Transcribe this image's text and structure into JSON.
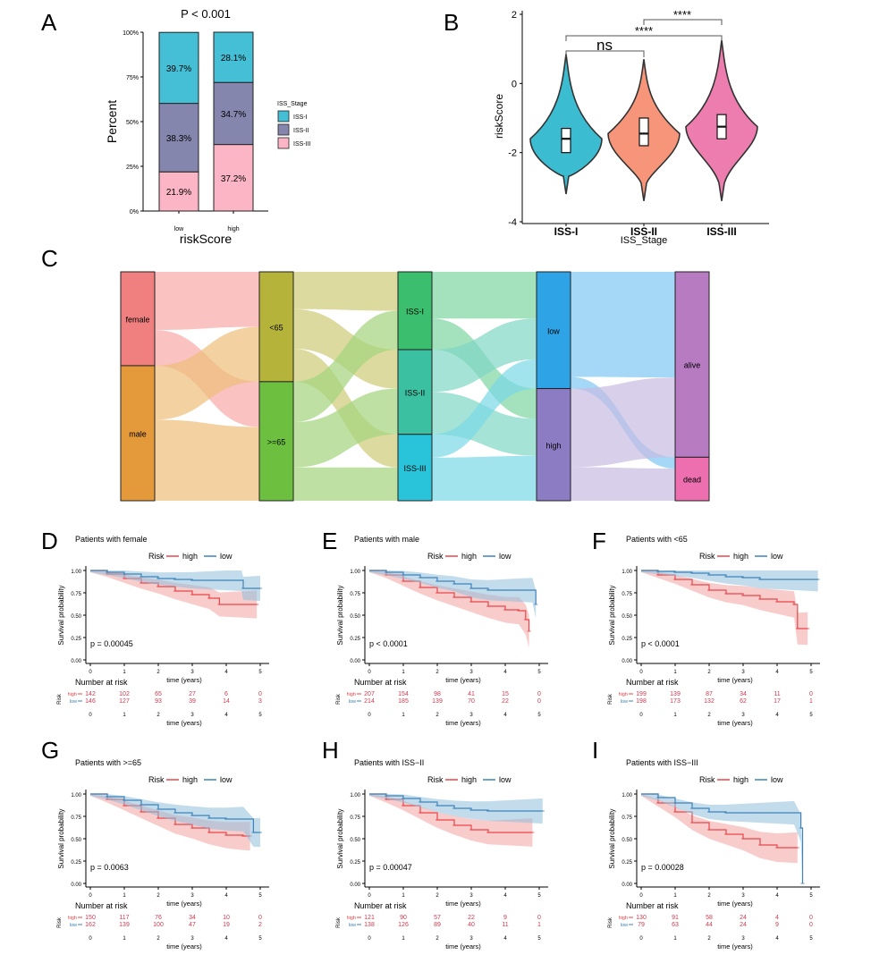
{
  "colors": {
    "iss1": "#44BFD5",
    "iss2": "#8486AD",
    "iss3": "#FBB5C4",
    "vio1": "#3BBCD0",
    "vio2": "#F6957A",
    "vio3": "#EC7DAE",
    "km_high": "#E8454A",
    "km_low": "#3E82B8",
    "km_high_band": "#F4A3A3",
    "km_low_band": "#8FC0DD"
  },
  "panels": {
    "A": "A",
    "B": "B",
    "C": "C",
    "D": "D",
    "E": "E",
    "F": "F",
    "G": "G",
    "H": "H",
    "I": "I"
  },
  "chart_data": [
    {
      "panel": "A",
      "type": "bar",
      "stacked": true,
      "title": "P < 0.001",
      "xlabel": "riskScore",
      "ylabel": "Percent",
      "categories": [
        "low",
        "high"
      ],
      "yticks": [
        "0%",
        "25%",
        "50%",
        "75%",
        "100%"
      ],
      "legend_title": "ISS_Stage",
      "series": [
        {
          "name": "ISS-III",
          "values": [
            21.9,
            37.2
          ],
          "labels": [
            "21.9%",
            "37.2%"
          ]
        },
        {
          "name": "ISS-II",
          "values": [
            38.3,
            34.7
          ],
          "labels": [
            "38.3%",
            "34.7%"
          ]
        },
        {
          "name": "ISS-I",
          "values": [
            39.7,
            28.1
          ],
          "labels": [
            "39.7%",
            "28.1%"
          ]
        }
      ],
      "legend": [
        "ISS-I",
        "ISS-II",
        "ISS-III"
      ]
    },
    {
      "panel": "B",
      "type": "violin",
      "xlabel": "ISS_Stage",
      "ylabel": "riskScore",
      "ylim": [
        -4,
        2
      ],
      "yticks": [
        "-4",
        "-2",
        "0",
        "2"
      ],
      "categories": [
        "ISS-I",
        "ISS-II",
        "ISS-III"
      ],
      "medians": [
        -1.6,
        -1.45,
        -1.25
      ],
      "boxes": [
        {
          "q1": -2.0,
          "q3": -1.3
        },
        {
          "q1": -1.8,
          "q3": -1.0
        },
        {
          "q1": -1.6,
          "q3": -0.9
        }
      ],
      "ranges": [
        {
          "min": -3.2,
          "max": 0.85
        },
        {
          "min": -3.4,
          "max": 0.7
        },
        {
          "min": -3.4,
          "max": 1.25
        }
      ],
      "significance": [
        {
          "label": "ns",
          "pair": "ISS-I vs ISS-II"
        },
        {
          "label": "****",
          "pair": "ISS-I vs ISS-III"
        },
        {
          "label": "****",
          "pair": "ISS-II vs ISS-III"
        }
      ]
    },
    {
      "panel": "C",
      "type": "sankey",
      "nodes": [
        {
          "axis": 0,
          "label": "female",
          "share": 0.41
        },
        {
          "axis": 0,
          "label": "male",
          "share": 0.59
        },
        {
          "axis": 1,
          "label": "<65",
          "share": 0.48
        },
        {
          "axis": 1,
          "label": ">=65",
          "share": 0.52
        },
        {
          "axis": 2,
          "label": "ISS-I",
          "share": 0.34
        },
        {
          "axis": 2,
          "label": "ISS-II",
          "share": 0.37
        },
        {
          "axis": 2,
          "label": "ISS-III",
          "share": 0.29
        },
        {
          "axis": 3,
          "label": "low",
          "share": 0.51
        },
        {
          "axis": 3,
          "label": "high",
          "share": 0.49
        },
        {
          "axis": 4,
          "label": "alive",
          "share": 0.81
        },
        {
          "axis": 4,
          "label": "dead",
          "share": 0.19
        }
      ]
    },
    {
      "panel": "D",
      "type": "line",
      "subtitle": "Patients with female",
      "pvalue": "p = 0.00045",
      "xlabel": "time (years)",
      "ylabel": "Survival probability",
      "ylim": [
        0,
        1
      ],
      "xlim": [
        0,
        5
      ],
      "legend_label": "Risk",
      "series": [
        {
          "name": "high",
          "x": [
            0,
            0.5,
            1,
            1.5,
            2,
            2.5,
            3,
            3.5,
            3.8,
            4,
            4.5,
            4.9
          ],
          "y": [
            1,
            0.96,
            0.91,
            0.86,
            0.82,
            0.77,
            0.73,
            0.69,
            0.62,
            0.62,
            0.62,
            0.62
          ]
        },
        {
          "name": "low",
          "x": [
            0,
            0.5,
            1,
            1.5,
            2,
            2.5,
            3,
            3.5,
            4,
            4.45,
            4.5,
            5
          ],
          "y": [
            1,
            0.98,
            0.96,
            0.93,
            0.91,
            0.9,
            0.89,
            0.89,
            0.89,
            0.89,
            0.8,
            0.8
          ]
        }
      ],
      "risk_table": {
        "title": "Number at risk",
        "rows": [
          {
            "name": "high",
            "counts": [
              "142",
              "102",
              "65",
              "27",
              "6",
              "0"
            ]
          },
          {
            "name": "low",
            "counts": [
              "146",
              "127",
              "93",
              "39",
              "14",
              "3"
            ]
          }
        ]
      }
    },
    {
      "panel": "E",
      "type": "line",
      "subtitle": "Patients with male",
      "pvalue": "p < 0.0001",
      "xlabel": "time (years)",
      "ylabel": "Survival probability",
      "ylim": [
        0,
        1
      ],
      "xlim": [
        0,
        5
      ],
      "legend_label": "Risk",
      "series": [
        {
          "name": "high",
          "x": [
            0,
            0.5,
            1,
            1.5,
            2,
            2.5,
            3,
            3.5,
            4,
            4.4,
            4.6,
            4.7
          ],
          "y": [
            1,
            0.95,
            0.88,
            0.81,
            0.75,
            0.7,
            0.65,
            0.6,
            0.56,
            0.55,
            0.45,
            0.32
          ]
        },
        {
          "name": "low",
          "x": [
            0,
            0.5,
            1,
            1.5,
            2,
            2.5,
            3,
            3.5,
            4,
            4.5,
            4.8,
            4.9
          ],
          "y": [
            1,
            0.98,
            0.95,
            0.92,
            0.88,
            0.85,
            0.8,
            0.78,
            0.78,
            0.78,
            0.78,
            0.62
          ]
        }
      ],
      "risk_table": {
        "title": "Number at risk",
        "rows": [
          {
            "name": "high",
            "counts": [
              "207",
              "154",
              "98",
              "41",
              "15",
              "0"
            ]
          },
          {
            "name": "low",
            "counts": [
              "214",
              "185",
              "139",
              "70",
              "22",
              "0"
            ]
          }
        ]
      }
    },
    {
      "panel": "F",
      "type": "line",
      "subtitle": "Patients with <65",
      "pvalue": "p < 0.0001",
      "xlabel": "time (years)",
      "ylabel": "Survival probability",
      "ylim": [
        0,
        1
      ],
      "xlim": [
        0,
        5
      ],
      "legend_label": "Risk",
      "series": [
        {
          "name": "high",
          "x": [
            0,
            0.5,
            1,
            1.5,
            2,
            2.5,
            3,
            3.5,
            4,
            4.5,
            4.6,
            4.9
          ],
          "y": [
            1,
            0.95,
            0.9,
            0.84,
            0.78,
            0.74,
            0.72,
            0.68,
            0.65,
            0.62,
            0.35,
            0.35
          ]
        },
        {
          "name": "low",
          "x": [
            0,
            0.5,
            1,
            1.5,
            2,
            2.5,
            3,
            3.5,
            4,
            4.5,
            5,
            5.2
          ],
          "y": [
            1,
            0.99,
            0.98,
            0.97,
            0.95,
            0.93,
            0.92,
            0.9,
            0.9,
            0.9,
            0.9,
            0.9
          ]
        }
      ],
      "risk_table": {
        "title": "Number at risk",
        "rows": [
          {
            "name": "high",
            "counts": [
              "199",
              "139",
              "87",
              "34",
              "11",
              "0"
            ]
          },
          {
            "name": "low",
            "counts": [
              "198",
              "173",
              "132",
              "62",
              "17",
              "1"
            ]
          }
        ]
      }
    },
    {
      "panel": "G",
      "type": "line",
      "subtitle": "Patients with >=65",
      "pvalue": "p = 0.0063",
      "xlabel": "time (years)",
      "ylabel": "Survival probability",
      "ylim": [
        0,
        1
      ],
      "xlim": [
        0,
        5
      ],
      "legend_label": "Risk",
      "series": [
        {
          "name": "high",
          "x": [
            0,
            0.5,
            1,
            1.5,
            2,
            2.5,
            3,
            3.5,
            4,
            4.5,
            4.7
          ],
          "y": [
            1,
            0.94,
            0.87,
            0.8,
            0.73,
            0.66,
            0.62,
            0.57,
            0.54,
            0.53,
            0.53
          ]
        },
        {
          "name": "low",
          "x": [
            0,
            0.5,
            1,
            1.5,
            2,
            2.5,
            3,
            3.5,
            4,
            4.5,
            4.8,
            5
          ],
          "y": [
            1,
            0.97,
            0.93,
            0.88,
            0.83,
            0.79,
            0.76,
            0.73,
            0.72,
            0.72,
            0.57,
            0.57
          ]
        }
      ],
      "risk_table": {
        "title": "Number at risk",
        "rows": [
          {
            "name": "high",
            "counts": [
              "150",
              "117",
              "76",
              "34",
              "10",
              "0"
            ]
          },
          {
            "name": "low",
            "counts": [
              "162",
              "139",
              "100",
              "47",
              "19",
              "2"
            ]
          }
        ]
      }
    },
    {
      "panel": "H",
      "type": "line",
      "subtitle": "Patients with ISS−II",
      "pvalue": "p = 0.00047",
      "xlabel": "time (years)",
      "ylabel": "Survival probability",
      "ylim": [
        0,
        1
      ],
      "xlim": [
        0,
        5
      ],
      "legend_label": "Risk",
      "series": [
        {
          "name": "high",
          "x": [
            0,
            0.5,
            1,
            1.5,
            2,
            2.5,
            3,
            3.5,
            4,
            4.5,
            4.8
          ],
          "y": [
            1,
            0.94,
            0.87,
            0.79,
            0.71,
            0.65,
            0.6,
            0.57,
            0.57,
            0.57,
            0.57
          ]
        },
        {
          "name": "low",
          "x": [
            0,
            0.5,
            1,
            1.5,
            2,
            2.5,
            3,
            3.5,
            4,
            4.5,
            5,
            5.1
          ],
          "y": [
            1,
            0.98,
            0.95,
            0.91,
            0.87,
            0.84,
            0.82,
            0.81,
            0.81,
            0.81,
            0.81,
            0.81
          ]
        }
      ],
      "risk_table": {
        "title": "Number at risk",
        "rows": [
          {
            "name": "high",
            "counts": [
              "121",
              "90",
              "57",
              "22",
              "9",
              "0"
            ]
          },
          {
            "name": "low",
            "counts": [
              "138",
              "126",
              "89",
              "40",
              "11",
              "1"
            ]
          }
        ]
      }
    },
    {
      "panel": "I",
      "type": "line",
      "subtitle": "Patients with ISS−III",
      "pvalue": "p = 0.00028",
      "xlabel": "time (years)",
      "ylabel": "Survival probability",
      "ylim": [
        0,
        1
      ],
      "xlim": [
        0,
        5
      ],
      "legend_label": "Risk",
      "series": [
        {
          "name": "high",
          "x": [
            0,
            0.5,
            1,
            1.5,
            2,
            2.5,
            3,
            3.5,
            4,
            4.5,
            4.6
          ],
          "y": [
            1,
            0.9,
            0.8,
            0.68,
            0.6,
            0.55,
            0.5,
            0.43,
            0.4,
            0.4,
            0.4
          ]
        },
        {
          "name": "low",
          "x": [
            0,
            0.5,
            1,
            1.5,
            2,
            2.5,
            3,
            3.5,
            4,
            4.5,
            4.7,
            4.75
          ],
          "y": [
            1,
            0.96,
            0.9,
            0.84,
            0.8,
            0.79,
            0.79,
            0.79,
            0.79,
            0.79,
            0.62,
            0
          ]
        }
      ],
      "risk_table": {
        "title": "Number at risk",
        "rows": [
          {
            "name": "high",
            "counts": [
              "130",
              "91",
              "58",
              "24",
              "4",
              "0"
            ]
          },
          {
            "name": "low",
            "counts": [
              "79",
              "63",
              "44",
              "24",
              "9",
              "0"
            ]
          }
        ]
      }
    }
  ]
}
